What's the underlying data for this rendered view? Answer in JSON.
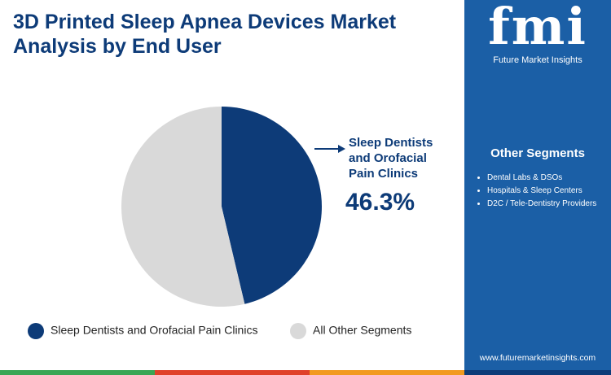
{
  "chart_data": {
    "type": "pie",
    "title": "3D Printed Sleep Apnea Devices Market Analysis by End User",
    "categories": [
      "Sleep Dentists and Orofacial Pain Clinics",
      "All Other Segments"
    ],
    "values": [
      46.3,
      53.7
    ],
    "value_labels": [
      "46.3%",
      null
    ],
    "colors": [
      "#0d3b78",
      "#d9d9d9"
    ]
  },
  "panel": {
    "brand": "fmi",
    "brand_sub": "Future Market Insights",
    "heading": "Other Segments",
    "items": [
      "Dental Labs & DSOs",
      "Hospitals & Sleep Centers",
      "D2C / Tele-Dentistry Providers"
    ],
    "url": "www.futuremarketinsights.com"
  }
}
